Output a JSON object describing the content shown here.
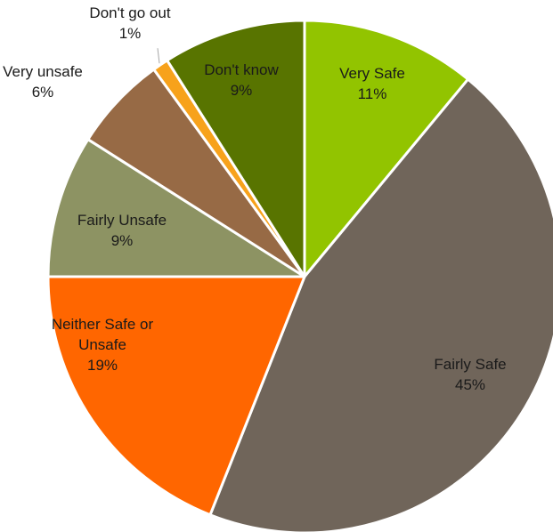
{
  "chart_data": {
    "type": "pie",
    "title": "",
    "start_angle_deg": 0,
    "direction": "clockwise",
    "slices": [
      {
        "label": "Very Safe",
        "lines": [
          "Very Safe"
        ],
        "value": 11,
        "value_label": "11%",
        "color": "#92C400",
        "label_inside": true
      },
      {
        "label": "Fairly Safe",
        "lines": [
          "Fairly Safe"
        ],
        "value": 45,
        "value_label": "45%",
        "color": "#70655A",
        "label_inside": true
      },
      {
        "label": "Neither Safe or Unsafe",
        "lines": [
          "Neither Safe or",
          "Unsafe"
        ],
        "value": 19,
        "value_label": "19%",
        "color": "#FF6600",
        "label_inside": true
      },
      {
        "label": "Fairly Unsafe",
        "lines": [
          "Fairly Unsafe"
        ],
        "value": 9,
        "value_label": "9%",
        "color": "#8D9363",
        "label_inside": true
      },
      {
        "label": "Very unsafe",
        "lines": [
          "Very unsafe"
        ],
        "value": 6,
        "value_label": "6%",
        "color": "#976A45",
        "label_inside": false
      },
      {
        "label": "Don't go out",
        "lines": [
          "Don't go out"
        ],
        "value": 1,
        "value_label": "1%",
        "color": "#F7A21B",
        "label_inside": false,
        "leader_line": true
      },
      {
        "label": "Don't know",
        "lines": [
          "Don't know"
        ],
        "value": 9,
        "value_label": "9%",
        "color": "#587400",
        "label_inside": true
      }
    ]
  }
}
